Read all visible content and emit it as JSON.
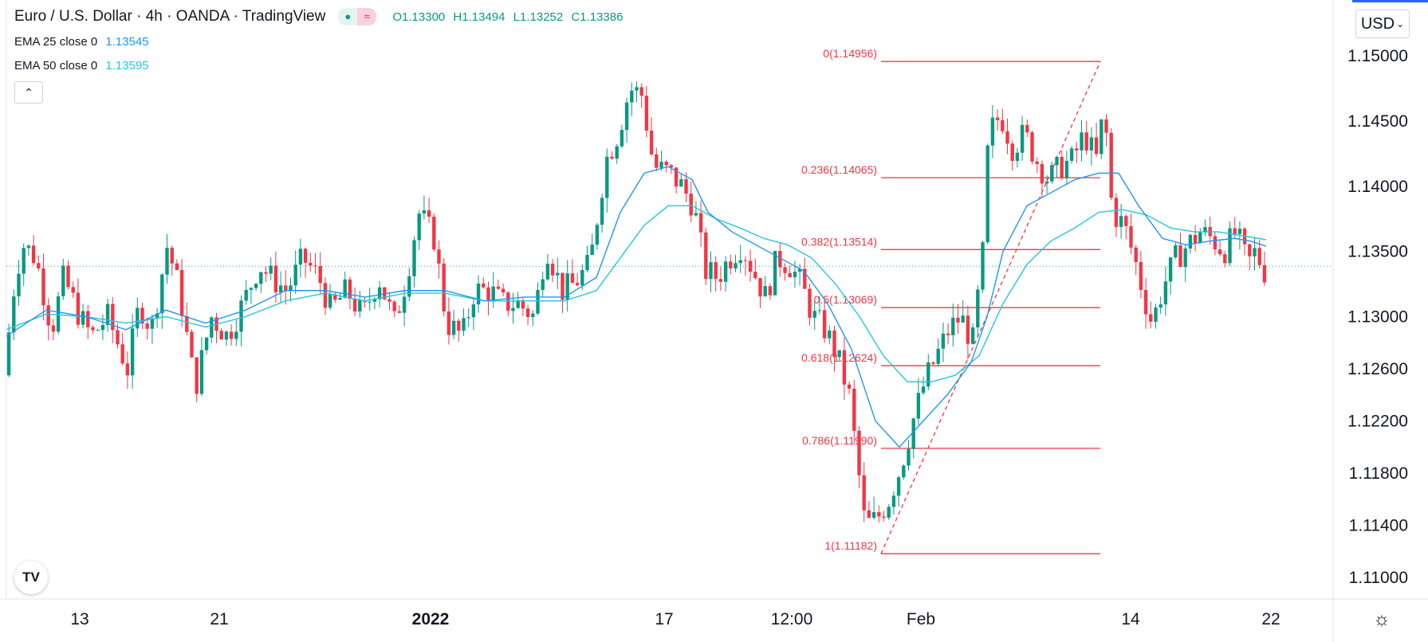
{
  "header": {
    "symbol_title": "Euro / U.S. Dollar · 4h · OANDA · TradingView",
    "open": "O1.13300",
    "high": "H1.13494",
    "low": "L1.13252",
    "close": "C1.13386"
  },
  "indicators": [
    {
      "label": "EMA 25 close 0",
      "value": "1.13545",
      "color": "#2196f3"
    },
    {
      "label": "EMA 50 close 0",
      "value": "1.13595",
      "color": "#26c6da"
    }
  ],
  "currency_button": "USD",
  "icons": {
    "collapse": "chevron-up-icon",
    "logo": "tradingview-logo-icon",
    "settings": "gear-icon"
  },
  "colors": {
    "up": "#089981",
    "down": "#f23645",
    "fib": "#f23645",
    "ema25": "#2196f3",
    "ema50": "#26c6da"
  },
  "chart_data": {
    "type": "candlestick",
    "title": "Euro / U.S. Dollar · 4h · OANDA · TradingView",
    "xlabel": "",
    "ylabel": "",
    "ylim": [
      1.106,
      1.152
    ],
    "y_ticks": [
      "1.15000",
      "1.14500",
      "1.14000",
      "1.13500",
      "1.13000",
      "1.12600",
      "1.12200",
      "1.11800",
      "1.11400",
      "1.11000"
    ],
    "x_ticks": [
      {
        "label": "13",
        "bold": false
      },
      {
        "label": "21",
        "bold": false
      },
      {
        "label": "2022",
        "bold": true
      },
      {
        "label": "17",
        "bold": false
      },
      {
        "label": "12:00",
        "bold": false
      },
      {
        "label": "Feb",
        "bold": false
      },
      {
        "label": "14",
        "bold": false
      },
      {
        "label": "22",
        "bold": false
      }
    ],
    "last_price": 1.13386,
    "grid": false,
    "fibonacci": {
      "levels": [
        {
          "label": "0(1.14956)",
          "price": 1.14956
        },
        {
          "label": "0.236(1.14065)",
          "price": 1.14065
        },
        {
          "label": "0.382(1.13514)",
          "price": 1.13514
        },
        {
          "label": "0.5(1.13069)",
          "price": 1.13069
        },
        {
          "label": "0.618(1.12624)",
          "price": 1.12624
        },
        {
          "label": "0.786(1.11990)",
          "price": 1.1199
        },
        {
          "label": "1(1.11182)",
          "price": 1.11182
        }
      ]
    },
    "price_path": [
      [
        0,
        1.1255
      ],
      [
        15,
        1.1335
      ],
      [
        25,
        1.1355
      ],
      [
        40,
        1.1345
      ],
      [
        60,
        1.129
      ],
      [
        75,
        1.133
      ],
      [
        95,
        1.13
      ],
      [
        110,
        1.1285
      ],
      [
        130,
        1.13
      ],
      [
        155,
        1.126
      ],
      [
        170,
        1.131
      ],
      [
        185,
        1.129
      ],
      [
        205,
        1.1355
      ],
      [
        220,
        1.132
      ],
      [
        240,
        1.1245
      ],
      [
        260,
        1.13
      ],
      [
        280,
        1.1285
      ],
      [
        300,
        1.131
      ],
      [
        320,
        1.134
      ],
      [
        335,
        1.133
      ],
      [
        355,
        1.132
      ],
      [
        375,
        1.1345
      ],
      [
        395,
        1.133
      ],
      [
        410,
        1.1305
      ],
      [
        430,
        1.132
      ],
      [
        450,
        1.13
      ],
      [
        470,
        1.133
      ],
      [
        490,
        1.1295
      ],
      [
        505,
        1.133
      ],
      [
        520,
        1.138
      ],
      [
        540,
        1.136
      ],
      [
        555,
        1.1295
      ],
      [
        575,
        1.1285
      ],
      [
        590,
        1.132
      ],
      [
        610,
        1.132
      ],
      [
        625,
        1.131
      ],
      [
        645,
        1.131
      ],
      [
        665,
        1.13
      ],
      [
        680,
        1.1355
      ],
      [
        700,
        1.132
      ],
      [
        715,
        1.1325
      ],
      [
        735,
        1.134
      ],
      [
        755,
        1.142
      ],
      [
        770,
        1.144
      ],
      [
        785,
        1.1475
      ],
      [
        800,
        1.147
      ],
      [
        815,
        1.1415
      ],
      [
        835,
        1.141
      ],
      [
        850,
        1.14
      ],
      [
        865,
        1.1385
      ],
      [
        880,
        1.1335
      ],
      [
        895,
        1.133
      ],
      [
        910,
        1.1345
      ],
      [
        925,
        1.1355
      ],
      [
        940,
        1.1335
      ],
      [
        955,
        1.1315
      ],
      [
        970,
        1.1345
      ],
      [
        985,
        1.134
      ],
      [
        1000,
        1.1325
      ],
      [
        1015,
        1.13
      ],
      [
        1030,
        1.129
      ],
      [
        1045,
        1.127
      ],
      [
        1060,
        1.124
      ],
      [
        1070,
        1.119
      ],
      [
        1080,
        1.114
      ],
      [
        1095,
        1.1145
      ],
      [
        1110,
        1.116
      ],
      [
        1125,
        1.1185
      ],
      [
        1140,
        1.122
      ],
      [
        1155,
        1.125
      ],
      [
        1170,
        1.127
      ],
      [
        1185,
        1.129
      ],
      [
        1200,
        1.13
      ],
      [
        1215,
        1.128
      ],
      [
        1228,
        1.135
      ],
      [
        1235,
        1.144
      ],
      [
        1250,
        1.1455
      ],
      [
        1265,
        1.143
      ],
      [
        1280,
        1.144
      ],
      [
        1295,
        1.142
      ],
      [
        1310,
        1.1405
      ],
      [
        1325,
        1.1415
      ],
      [
        1340,
        1.142
      ],
      [
        1355,
        1.144
      ],
      [
        1370,
        1.142
      ],
      [
        1380,
        1.146
      ],
      [
        1390,
        1.138
      ],
      [
        1405,
        1.137
      ],
      [
        1420,
        1.134
      ],
      [
        1430,
        1.1315
      ],
      [
        1440,
        1.1295
      ],
      [
        1455,
        1.1325
      ],
      [
        1470,
        1.1345
      ],
      [
        1485,
        1.1355
      ],
      [
        1500,
        1.1365
      ],
      [
        1515,
        1.136
      ],
      [
        1530,
        1.135
      ],
      [
        1545,
        1.1365
      ],
      [
        1560,
        1.134
      ],
      [
        1570,
        1.135
      ],
      [
        1580,
        1.1335
      ]
    ],
    "ema25": [
      [
        0,
        1.1285
      ],
      [
        50,
        1.1305
      ],
      [
        100,
        1.13
      ],
      [
        150,
        1.129
      ],
      [
        200,
        1.1305
      ],
      [
        250,
        1.1295
      ],
      [
        300,
        1.1305
      ],
      [
        350,
        1.132
      ],
      [
        400,
        1.132
      ],
      [
        450,
        1.1315
      ],
      [
        500,
        1.132
      ],
      [
        550,
        1.132
      ],
      [
        600,
        1.1312
      ],
      [
        650,
        1.1315
      ],
      [
        700,
        1.1315
      ],
      [
        740,
        1.133
      ],
      [
        770,
        1.138
      ],
      [
        800,
        1.141
      ],
      [
        830,
        1.1415
      ],
      [
        860,
        1.1405
      ],
      [
        880,
        1.138
      ],
      [
        910,
        1.1365
      ],
      [
        940,
        1.1355
      ],
      [
        970,
        1.1345
      ],
      [
        1000,
        1.1335
      ],
      [
        1030,
        1.131
      ],
      [
        1060,
        1.1275
      ],
      [
        1090,
        1.122
      ],
      [
        1120,
        1.12
      ],
      [
        1150,
        1.122
      ],
      [
        1180,
        1.124
      ],
      [
        1210,
        1.1265
      ],
      [
        1230,
        1.13
      ],
      [
        1250,
        1.135
      ],
      [
        1280,
        1.1385
      ],
      [
        1310,
        1.1395
      ],
      [
        1340,
        1.1405
      ],
      [
        1370,
        1.141
      ],
      [
        1395,
        1.141
      ],
      [
        1420,
        1.1385
      ],
      [
        1450,
        1.136
      ],
      [
        1480,
        1.1355
      ],
      [
        1510,
        1.1358
      ],
      [
        1540,
        1.136
      ],
      [
        1560,
        1.1358
      ],
      [
        1580,
        1.1354
      ]
    ],
    "ema50": [
      [
        0,
        1.129
      ],
      [
        50,
        1.1302
      ],
      [
        100,
        1.13
      ],
      [
        150,
        1.1295
      ],
      [
        200,
        1.13
      ],
      [
        250,
        1.1292
      ],
      [
        300,
        1.13
      ],
      [
        350,
        1.1312
      ],
      [
        400,
        1.1318
      ],
      [
        450,
        1.1312
      ],
      [
        500,
        1.1318
      ],
      [
        550,
        1.1318
      ],
      [
        600,
        1.1312
      ],
      [
        650,
        1.1312
      ],
      [
        700,
        1.1312
      ],
      [
        740,
        1.132
      ],
      [
        770,
        1.1345
      ],
      [
        800,
        1.137
      ],
      [
        830,
        1.1385
      ],
      [
        860,
        1.1385
      ],
      [
        890,
        1.1375
      ],
      [
        920,
        1.1368
      ],
      [
        950,
        1.136
      ],
      [
        980,
        1.1355
      ],
      [
        1010,
        1.1345
      ],
      [
        1040,
        1.1325
      ],
      [
        1070,
        1.13
      ],
      [
        1100,
        1.127
      ],
      [
        1130,
        1.125
      ],
      [
        1160,
        1.125
      ],
      [
        1190,
        1.1255
      ],
      [
        1220,
        1.127
      ],
      [
        1250,
        1.131
      ],
      [
        1280,
        1.134
      ],
      [
        1310,
        1.1358
      ],
      [
        1340,
        1.1368
      ],
      [
        1370,
        1.138
      ],
      [
        1400,
        1.1382
      ],
      [
        1430,
        1.1378
      ],
      [
        1460,
        1.1368
      ],
      [
        1490,
        1.1365
      ],
      [
        1520,
        1.1365
      ],
      [
        1550,
        1.1362
      ],
      [
        1570,
        1.136
      ],
      [
        1580,
        1.1359
      ]
    ]
  }
}
